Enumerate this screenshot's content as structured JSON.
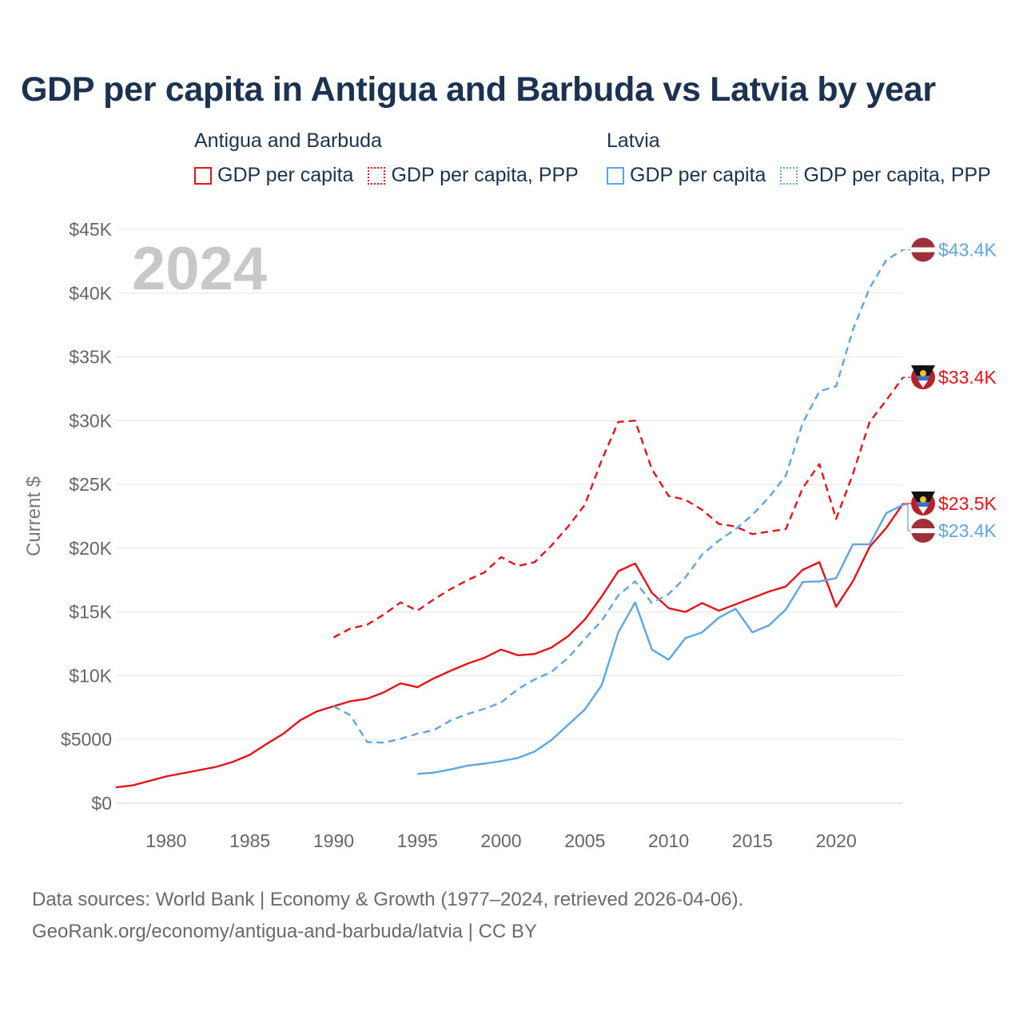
{
  "title": "GDP per capita in Antigua and Barbuda vs Latvia by year",
  "legend": {
    "groups": [
      {
        "name": "Antigua and Barbuda",
        "items": [
          "GDP per capita",
          "GDP per capita, PPP"
        ]
      },
      {
        "name": "Latvia",
        "items": [
          "GDP per capita",
          "GDP per capita, PPP"
        ]
      }
    ]
  },
  "footer": {
    "line1": "Data sources: World Bank | Economy & Growth (1977–2024, retrieved 2026-04-06).",
    "line2": "GeoRank.org/economy/antigua-and-barbuda/latvia | CC BY"
  },
  "colors": {
    "antigua": "#e8111a",
    "latvia": "#5ea5e3"
  },
  "chart_data": {
    "type": "line",
    "year_watermark": "2024",
    "ylabel": "Current $",
    "xlim": [
      1977,
      2024
    ],
    "ylim": [
      0,
      45000
    ],
    "x_ticks": [
      1980,
      1985,
      1990,
      1995,
      2000,
      2005,
      2010,
      2015,
      2020
    ],
    "y_ticks": [
      {
        "value": 0,
        "label": "$0"
      },
      {
        "value": 5000,
        "label": "$5000"
      },
      {
        "value": 10000,
        "label": "$10K"
      },
      {
        "value": 15000,
        "label": "$15K"
      },
      {
        "value": 20000,
        "label": "$20K"
      },
      {
        "value": 25000,
        "label": "$25K"
      },
      {
        "value": 30000,
        "label": "$30K"
      },
      {
        "value": 35000,
        "label": "$35K"
      },
      {
        "value": 40000,
        "label": "$40K"
      },
      {
        "value": 45000,
        "label": "$45K"
      }
    ],
    "series": [
      {
        "name": "Antigua and Barbuda GDP per capita",
        "country": "antigua",
        "style": "solid",
        "end_label": "$23.5K",
        "x": [
          1977,
          1978,
          1979,
          1980,
          1981,
          1982,
          1983,
          1984,
          1985,
          1986,
          1987,
          1988,
          1989,
          1990,
          1991,
          1992,
          1993,
          1994,
          1995,
          1996,
          1997,
          1998,
          1999,
          2000,
          2001,
          2002,
          2003,
          2004,
          2005,
          2006,
          2007,
          2008,
          2009,
          2010,
          2011,
          2012,
          2013,
          2014,
          2015,
          2016,
          2017,
          2018,
          2019,
          2020,
          2021,
          2022,
          2023,
          2024
        ],
        "y": [
          1250,
          1400,
          1750,
          2100,
          2350,
          2600,
          2850,
          3250,
          3800,
          4650,
          5450,
          6500,
          7200,
          7600,
          8000,
          8200,
          8700,
          9400,
          9100,
          9800,
          10400,
          10950,
          11400,
          12050,
          11600,
          11700,
          12200,
          13100,
          14400,
          16200,
          18200,
          18800,
          16500,
          15300,
          15000,
          15700,
          15100,
          15600,
          16100,
          16600,
          17000,
          18300,
          18900,
          15400,
          17400,
          20100,
          21600,
          23500
        ]
      },
      {
        "name": "Antigua and Barbuda GDP per capita, PPP",
        "country": "antigua",
        "style": "dashed",
        "end_label": "$33.4K",
        "x": [
          1990,
          1991,
          1992,
          1993,
          1994,
          1995,
          1996,
          1997,
          1998,
          1999,
          2000,
          2001,
          2002,
          2003,
          2004,
          2005,
          2006,
          2007,
          2008,
          2009,
          2010,
          2011,
          2012,
          2013,
          2014,
          2015,
          2016,
          2017,
          2018,
          2019,
          2020,
          2021,
          2022,
          2023,
          2024
        ],
        "y": [
          13000,
          13700,
          14000,
          14800,
          15750,
          15100,
          16000,
          16800,
          17500,
          18100,
          19300,
          18600,
          18900,
          20200,
          21700,
          23400,
          26900,
          29900,
          30000,
          26200,
          24100,
          23800,
          23000,
          21900,
          21700,
          21100,
          21300,
          21500,
          24700,
          26600,
          22300,
          25800,
          29900,
          31600,
          33400
        ]
      },
      {
        "name": "Latvia GDP per capita",
        "country": "latvia",
        "style": "solid",
        "end_label": "$23.4K",
        "x": [
          1995,
          1996,
          1997,
          1998,
          1999,
          2000,
          2001,
          2002,
          2003,
          2004,
          2005,
          2006,
          2007,
          2008,
          2009,
          2010,
          2011,
          2012,
          2013,
          2014,
          2015,
          2016,
          2017,
          2018,
          2019,
          2020,
          2021,
          2022,
          2023,
          2024
        ],
        "y": [
          2300,
          2400,
          2650,
          2950,
          3100,
          3300,
          3550,
          4050,
          4950,
          6150,
          7350,
          9250,
          13400,
          15750,
          12050,
          11250,
          12950,
          13400,
          14550,
          15250,
          13400,
          13950,
          15200,
          17350,
          17400,
          17650,
          20300,
          20300,
          22750,
          23400
        ]
      },
      {
        "name": "Latvia GDP per capita, PPP",
        "country": "latvia",
        "style": "dashed",
        "end_label": "$43.4K",
        "x": [
          1990,
          1991,
          1992,
          1993,
          1994,
          1995,
          1996,
          1997,
          1998,
          1999,
          2000,
          2001,
          2002,
          2003,
          2004,
          2005,
          2006,
          2007,
          2008,
          2009,
          2010,
          2011,
          2012,
          2013,
          2014,
          2015,
          2016,
          2017,
          2018,
          2019,
          2020,
          2021,
          2022,
          2023,
          2024
        ],
        "y": [
          7600,
          6900,
          4800,
          4750,
          5050,
          5450,
          5750,
          6500,
          7000,
          7400,
          7900,
          8950,
          9700,
          10300,
          11400,
          12900,
          14300,
          16300,
          17400,
          15700,
          16400,
          17700,
          19500,
          20600,
          21500,
          22600,
          24000,
          25700,
          29800,
          32300,
          32700,
          37100,
          40400,
          42600,
          43400
        ]
      }
    ]
  }
}
